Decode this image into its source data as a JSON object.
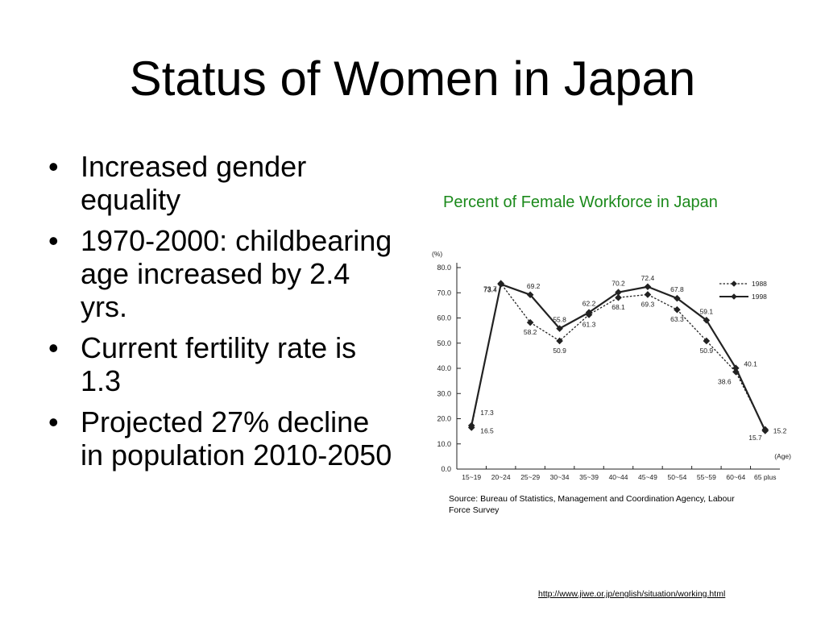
{
  "slide": {
    "title": "Status of Women in Japan",
    "bullets": [
      "Increased gender equality",
      "1970-2000: childbearing age increased by 2.4 yrs.",
      "Current fertility rate is 1.3",
      "Projected 27% decline in population 2010-2050"
    ],
    "source_note": "Source: Bureau of Statistics, Management and Coordination Agency, Labour Force Survey",
    "url": "http://www.jiwe.or.jp/english/situation/working.html"
  },
  "chart_data": {
    "type": "line",
    "title": "Percent of Female Workforce in Japan",
    "ylabel": "(%)",
    "xlabel": "(Age)",
    "ylim": [
      0,
      80
    ],
    "yticks": [
      "0.0",
      "10.0",
      "20.0",
      "30.0",
      "40.0",
      "50.0",
      "60.0",
      "70.0",
      "80.0"
    ],
    "categories": [
      "15~19",
      "20~24",
      "25~29",
      "30~34",
      "35~39",
      "40~44",
      "45~49",
      "50~54",
      "55~59",
      "60~64",
      "65 plus"
    ],
    "series": [
      {
        "name": "1988",
        "style": "dashed",
        "values": [
          16.5,
          73.7,
          58.2,
          50.9,
          61.3,
          68.1,
          69.3,
          63.3,
          50.9,
          38.6,
          15.7
        ]
      },
      {
        "name": "1998",
        "style": "solid",
        "values": [
          17.3,
          73.4,
          69.2,
          55.8,
          62.2,
          70.2,
          72.4,
          67.8,
          59.1,
          40.1,
          15.2
        ]
      }
    ],
    "legend": "top-right",
    "grid": false,
    "colors": {
      "line": "#222222",
      "title": "#1c8a1c"
    }
  }
}
